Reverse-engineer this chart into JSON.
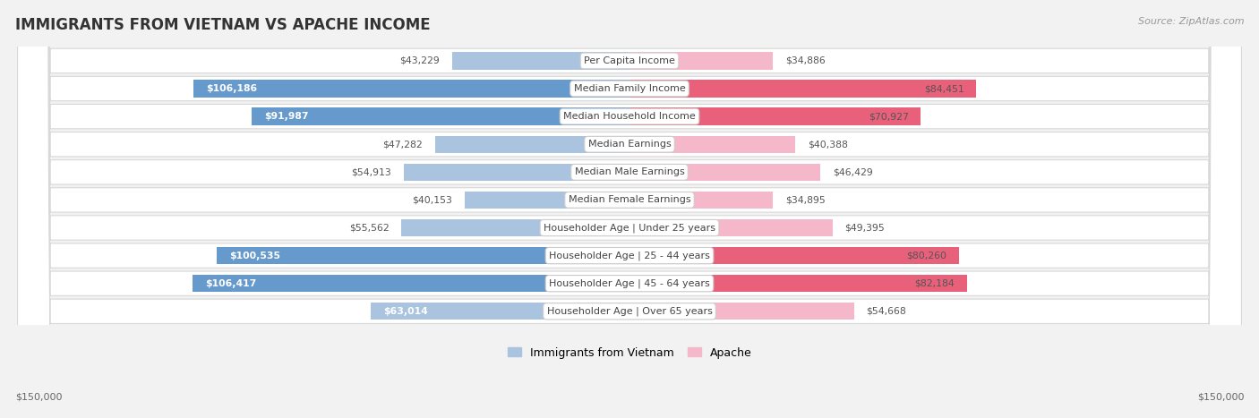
{
  "title": "IMMIGRANTS FROM VIETNAM VS APACHE INCOME",
  "source": "Source: ZipAtlas.com",
  "categories": [
    "Per Capita Income",
    "Median Family Income",
    "Median Household Income",
    "Median Earnings",
    "Median Male Earnings",
    "Median Female Earnings",
    "Householder Age | Under 25 years",
    "Householder Age | 25 - 44 years",
    "Householder Age | 45 - 64 years",
    "Householder Age | Over 65 years"
  ],
  "vietnam_values": [
    43229,
    106186,
    91987,
    47282,
    54913,
    40153,
    55562,
    100535,
    106417,
    63014
  ],
  "apache_values": [
    34886,
    84451,
    70927,
    40388,
    46429,
    34895,
    49395,
    80260,
    82184,
    54668
  ],
  "vietnam_labels": [
    "$43,229",
    "$106,186",
    "$91,987",
    "$47,282",
    "$54,913",
    "$40,153",
    "$55,562",
    "$100,535",
    "$106,417",
    "$63,014"
  ],
  "apache_labels": [
    "$34,886",
    "$84,451",
    "$70,927",
    "$40,388",
    "$46,429",
    "$34,895",
    "$49,395",
    "$80,260",
    "$82,184",
    "$54,668"
  ],
  "vietnam_color_light": "#aac4e0",
  "vietnam_color_dark": "#6699cc",
  "apache_color_light": "#f5b8cb",
  "apache_color_dark": "#e8607a",
  "dark_threshold": 70000,
  "max_value": 150000,
  "xlabel_left": "$150,000",
  "xlabel_right": "$150,000",
  "legend_vietnam": "Immigrants from Vietnam",
  "legend_apache": "Apache",
  "background_color": "#f2f2f2",
  "row_bg_color": "#ffffff",
  "row_border_color": "#d8d8d8",
  "label_inside_color": "#ffffff",
  "label_outside_color": "#555555",
  "category_text_color": "#444444"
}
